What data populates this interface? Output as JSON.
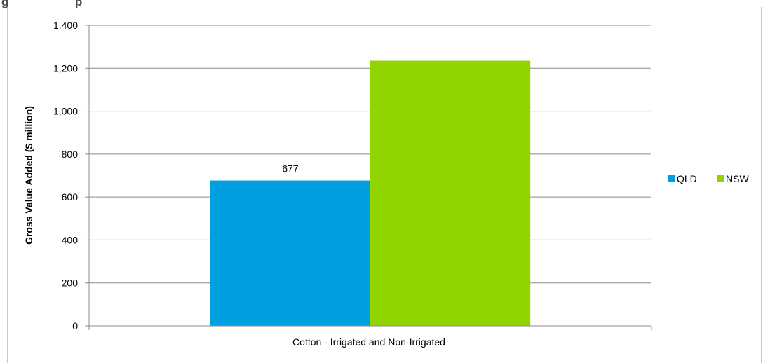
{
  "page": {
    "title_fragment": "g                    p"
  },
  "chart_data": {
    "type": "bar",
    "categories": [
      "Cotton - Irrigated and Non-Irrigated"
    ],
    "series": [
      {
        "name": "QLD",
        "values": [
          677
        ],
        "color": "#009fe0",
        "data_label": "677"
      },
      {
        "name": "NSW",
        "values": [
          1235
        ],
        "color": "#92d400",
        "data_label": ""
      }
    ],
    "xlabel": "",
    "ylabel": "Gross Value Added ($ million)",
    "ylim": [
      0,
      1400
    ],
    "yticks": [
      0,
      200,
      400,
      600,
      800,
      1000,
      1200,
      1400
    ],
    "ytick_labels": [
      "0",
      "200",
      "400",
      "600",
      "800",
      "1,000",
      "1,200",
      "1,400"
    ],
    "grid": true,
    "legend_position": "right"
  }
}
